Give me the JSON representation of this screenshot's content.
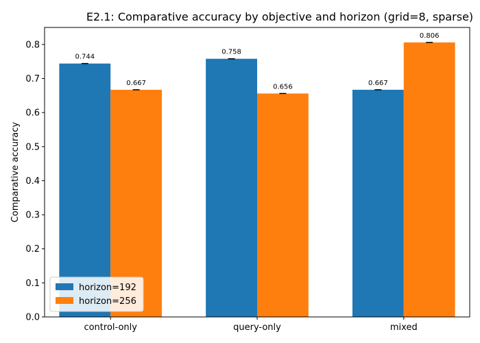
{
  "chart_data": {
    "type": "bar",
    "title": "E2.1: Comparative accuracy by objective and horizon (grid=8, sparse)",
    "xlabel": "",
    "ylabel": "Comparative accuracy",
    "categories": [
      "control-only",
      "query-only",
      "mixed"
    ],
    "ylim": [
      0,
      0.85
    ],
    "yticks": [
      0.0,
      0.1,
      0.2,
      0.3,
      0.4,
      0.5,
      0.6,
      0.7,
      0.8
    ],
    "ytick_labels": [
      "0.0",
      "0.1",
      "0.2",
      "0.3",
      "0.4",
      "0.5",
      "0.6",
      "0.7",
      "0.8"
    ],
    "grid": false,
    "legend_position": "lower-left",
    "series": [
      {
        "name": "horizon=192",
        "color": "#1f77b4",
        "values": [
          0.744,
          0.758,
          0.667
        ],
        "labels": [
          "0.744",
          "0.758",
          "0.667"
        ]
      },
      {
        "name": "horizon=256",
        "color": "#ff7f0e",
        "values": [
          0.667,
          0.656,
          0.806
        ],
        "labels": [
          "0.667",
          "0.656",
          "0.806"
        ]
      }
    ]
  }
}
